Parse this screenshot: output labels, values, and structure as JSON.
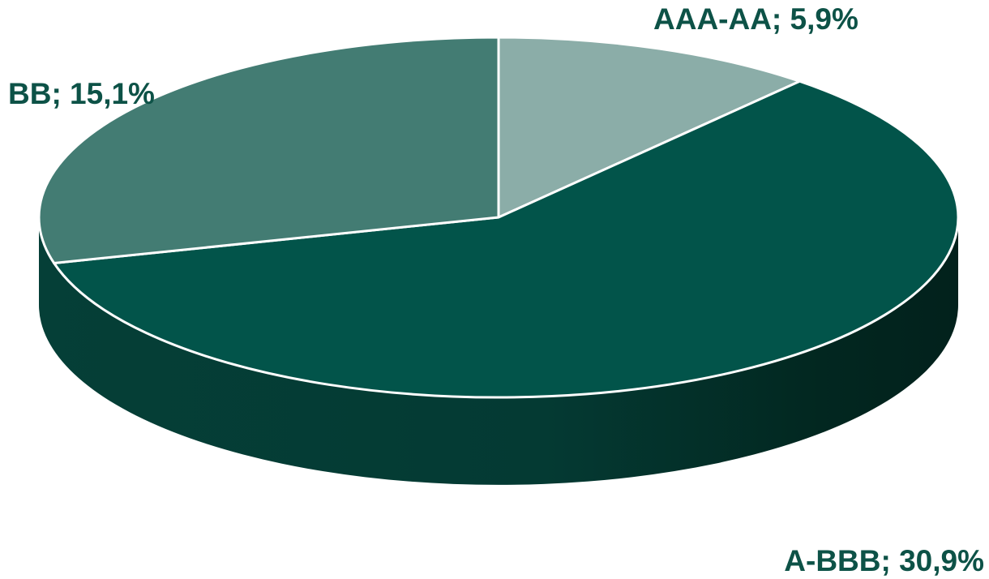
{
  "chart_data": {
    "type": "pie",
    "style": "3d",
    "title": "",
    "slices": [
      {
        "label": "AAA-AA",
        "value": 5.9,
        "value_text": "5,9%",
        "color": "#8BADA8"
      },
      {
        "label": "A-BBB",
        "value": 30.9,
        "value_text": "30,9%",
        "color": "#02544A"
      },
      {
        "label": "BB",
        "value": 15.1,
        "value_text": "15,1%",
        "color": "#437C73"
      }
    ],
    "label_color": "#0D5247",
    "legend": "none"
  }
}
